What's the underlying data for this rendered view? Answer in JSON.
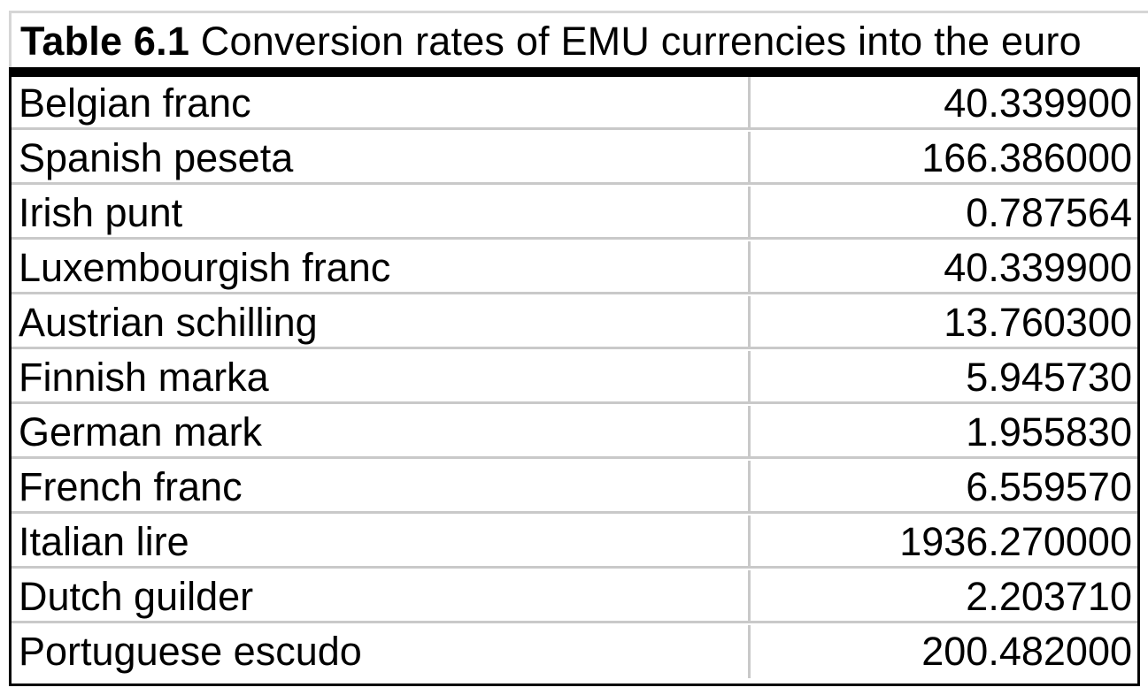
{
  "caption": {
    "label": "Table 6.1",
    "title": " Conversion rates of EMU currencies into the euro"
  },
  "rows": [
    {
      "currency": "Belgian franc",
      "rate": "40.339900"
    },
    {
      "currency": "Spanish peseta",
      "rate": "166.386000"
    },
    {
      "currency": "Irish punt",
      "rate": "0.787564"
    },
    {
      "currency": "Luxembourgish franc",
      "rate": "40.339900"
    },
    {
      "currency": "Austrian schilling",
      "rate": "13.760300"
    },
    {
      "currency": "Finnish marka",
      "rate": "5.945730"
    },
    {
      "currency": "German mark",
      "rate": "1.955830"
    },
    {
      "currency": "French franc",
      "rate": "6.559570"
    },
    {
      "currency": "Italian lire",
      "rate": "1936.270000"
    },
    {
      "currency": "Dutch guilder",
      "rate": "2.203710"
    },
    {
      "currency": "Portuguese escudo",
      "rate": "200.482000"
    }
  ]
}
